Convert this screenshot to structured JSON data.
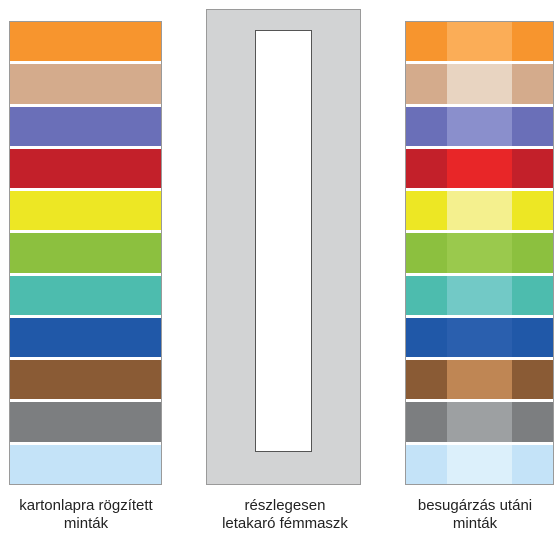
{
  "captions": {
    "samples": [
      "kartonlapra rögzített",
      "minták"
    ],
    "mask": [
      "részlegesen",
      "letakaró fémmaszk"
    ],
    "irradiated": [
      "besugárzás utáni",
      "minták"
    ]
  },
  "sample_colors": [
    {
      "name": "orange",
      "base": "#f7952e",
      "exposed": "#fbad57"
    },
    {
      "name": "tan",
      "base": "#d4ab8c",
      "exposed": "#e8d4c1"
    },
    {
      "name": "periwinkle",
      "base": "#6a6fb8",
      "exposed": "#8a8fcc"
    },
    {
      "name": "red",
      "base": "#c3202a",
      "exposed": "#e82628"
    },
    {
      "name": "yellow",
      "base": "#ede724",
      "exposed": "#f4f08e"
    },
    {
      "name": "green",
      "base": "#8cc03f",
      "exposed": "#9ac94d"
    },
    {
      "name": "teal",
      "base": "#4dbcae",
      "exposed": "#72c9c6"
    },
    {
      "name": "blue",
      "base": "#2058a8",
      "exposed": "#2a5fae"
    },
    {
      "name": "brown",
      "base": "#8a5b35",
      "exposed": "#bf8654"
    },
    {
      "name": "gray",
      "base": "#7c7e80",
      "exposed": "#9da0a2"
    },
    {
      "name": "light-blue",
      "base": "#c4e3f8",
      "exposed": "#dcf0fb"
    }
  ]
}
